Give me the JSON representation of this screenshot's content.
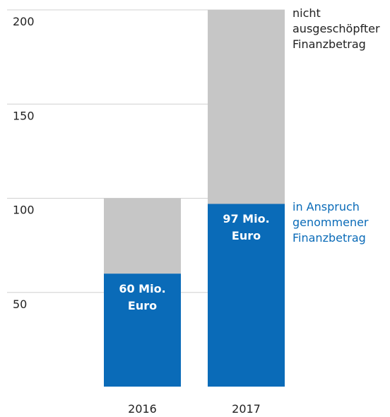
{
  "chart_data": {
    "type": "bar",
    "stacked": true,
    "categories": [
      "2016",
      "2017"
    ],
    "series": [
      {
        "name": "in Anspruch genommener Finanzbetrag",
        "color": "#0a6bb8",
        "values": [
          60,
          97
        ],
        "value_labels": [
          "60 Mio. Euro",
          "97 Mio. Euro"
        ]
      },
      {
        "name": "nicht ausgeschöpfter Finanzbetrag",
        "color": "#c6c6c6",
        "values": [
          40,
          103
        ]
      }
    ],
    "ylim": [
      0,
      200
    ],
    "yticks": [
      50,
      100,
      150,
      200
    ],
    "grid": true
  }
}
